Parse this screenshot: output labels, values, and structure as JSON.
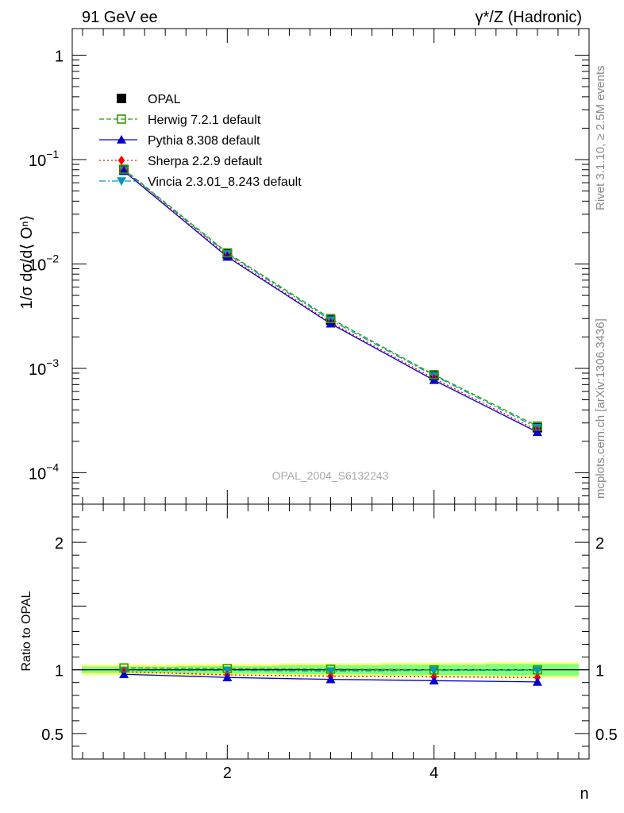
{
  "header": {
    "left": "91 GeV ee",
    "right": "γ*/Z (Hadronic)"
  },
  "side_labels": {
    "rivet": "Rivet 3.1.10, ≥ 2.5M events",
    "mcplots": "mcplots.cern.ch [arXiv:1306.3436]"
  },
  "watermark": "OPAL_2004_S6132243",
  "chart_data": [
    {
      "type": "line",
      "panel": "main",
      "ylabel": "1/σ dσ/d⟨ Oⁿ⟩",
      "yscale": "log",
      "ylim": [
        5e-05,
        1.8
      ],
      "xlim": [
        0.5,
        5.5
      ],
      "ytick_labels": [
        {
          "value": 1,
          "base": "1",
          "exp": ""
        },
        {
          "value": 0.1,
          "base": "10",
          "exp": "−1"
        },
        {
          "value": 0.01,
          "base": "10",
          "exp": "−2"
        },
        {
          "value": 0.001,
          "base": "10",
          "exp": "−3"
        },
        {
          "value": 0.0001,
          "base": "10",
          "exp": "−4"
        }
      ],
      "legend_position": "top-left",
      "x": [
        1,
        2,
        3,
        4,
        5
      ],
      "series": [
        {
          "name": "OPAL",
          "key": "opal",
          "values": [
            0.08,
            0.0125,
            0.0029,
            0.00085,
            0.00027
          ],
          "color": "#000000",
          "marker": "square-filled",
          "line": "none"
        },
        {
          "name": "Herwig 7.2.1 default",
          "key": "herwig",
          "values": [
            0.081,
            0.0128,
            0.003,
            0.00087,
            0.00028
          ],
          "color": "#339900",
          "marker": "square-open",
          "line": "dashed"
        },
        {
          "name": "Pythia 8.308 default",
          "key": "pythia",
          "values": [
            0.0775,
            0.0117,
            0.00268,
            0.00077,
            0.000245
          ],
          "color": "#0000cc",
          "marker": "triangle-up",
          "line": "solid"
        },
        {
          "name": "Sherpa 2.2.9 default",
          "key": "sherpa",
          "values": [
            0.0785,
            0.012,
            0.00275,
            0.0008,
            0.000255
          ],
          "color": "#ff0000",
          "marker": "diamond",
          "line": "dotted"
        },
        {
          "name": "Vincia 2.3.01_8.243 default",
          "key": "vincia",
          "values": [
            0.0795,
            0.0125,
            0.0029,
            0.00085,
            0.00027
          ],
          "color": "#0099bb",
          "marker": "triangle-down",
          "line": "dashdot"
        }
      ]
    },
    {
      "type": "line",
      "panel": "ratio",
      "ylabel": "Ratio to OPAL",
      "xlabel": "n",
      "ylim": [
        0.3,
        2.3
      ],
      "xlim": [
        0.5,
        5.5
      ],
      "yticks": [
        0.5,
        1,
        2
      ],
      "ytick_labels": [
        "0.5",
        "1",
        "2"
      ],
      "xticks": [
        2,
        4
      ],
      "xtick_labels": [
        "2",
        "4"
      ],
      "x": [
        1,
        2,
        3,
        4,
        5
      ],
      "bands": {
        "inner_halfwidth": [
          0.025,
          0.03,
          0.035,
          0.04,
          0.045
        ],
        "outer_halfwidth": [
          0.04,
          0.045,
          0.05,
          0.055,
          0.06
        ],
        "inner_color": "#80ff80",
        "outer_color": "#ffff66"
      },
      "series": [
        {
          "name": "Herwig 7.2.1 default",
          "key": "herwig",
          "values": [
            1.015,
            1.01,
            1.005,
            1.0,
            1.0
          ]
        },
        {
          "name": "Pythia 8.308 default",
          "key": "pythia",
          "values": [
            0.965,
            0.94,
            0.925,
            0.915,
            0.905
          ]
        },
        {
          "name": "Sherpa 2.2.9 default",
          "key": "sherpa",
          "values": [
            0.985,
            0.96,
            0.95,
            0.945,
            0.94
          ]
        },
        {
          "name": "Vincia 2.3.01_8.243 default",
          "key": "vincia",
          "values": [
            0.995,
            0.995,
            0.99,
            0.995,
            0.995
          ]
        }
      ]
    }
  ]
}
